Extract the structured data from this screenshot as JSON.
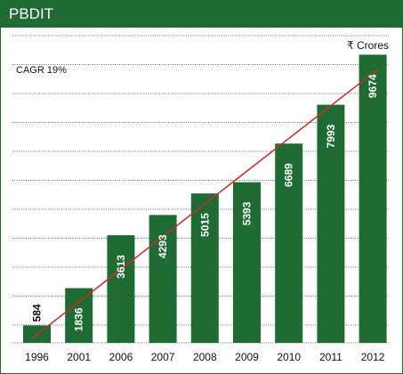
{
  "panel": {
    "title": "PBDIT"
  },
  "chart_data": {
    "type": "bar",
    "title": "PBDIT",
    "unit_label": "₹ Crores",
    "annotation": "CAGR 19%",
    "categories": [
      "1996",
      "2001",
      "2006",
      "2007",
      "2008",
      "2009",
      "2010",
      "2011",
      "2012"
    ],
    "values": [
      584,
      1836,
      3613,
      4293,
      5015,
      5393,
      6689,
      7993,
      9674
    ],
    "trendline": {
      "from_category": "1996",
      "to_category": "2012",
      "label": "CAGR 19%"
    },
    "ylim": [
      0,
      10000
    ],
    "grid": true,
    "colors": {
      "bar": "#1e6b34",
      "trend": "#cc2a27",
      "grid": "#333333",
      "frame": "#1e6b34"
    }
  }
}
